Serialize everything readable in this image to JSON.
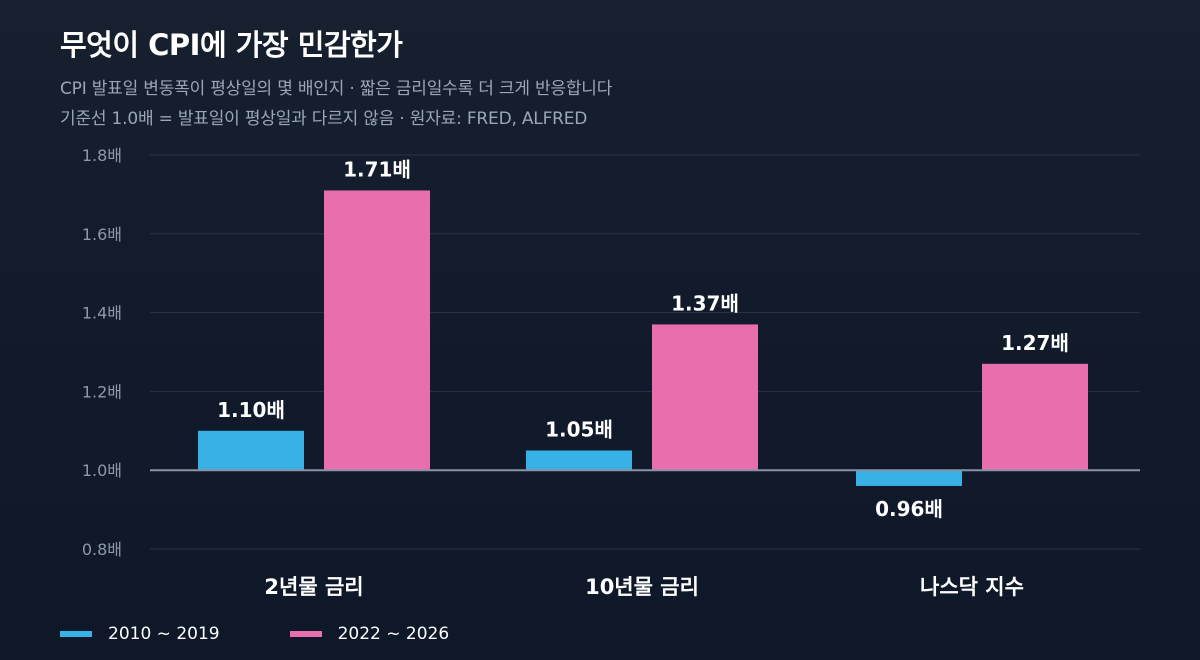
{
  "header": {
    "title": "무엇이 CPI에 가장 민감한가",
    "subtitle_line1": "CPI 발표일 변동폭이 평상일의 몇 배인지  ·  짧은 금리일수록 더 크게 반응합니다",
    "subtitle_line2": "기준선 1.0배 = 발표일이 평상일과 다르지 않음  ·  원자료: FRED, ALFRED"
  },
  "legend": {
    "items": [
      {
        "label": "2010 ~ 2019",
        "color": "#38b1e6"
      },
      {
        "label": "2022 ~ 2026",
        "color": "#e86eae"
      }
    ]
  },
  "chart_data": {
    "type": "bar",
    "categories": [
      "2년물 금리",
      "10년물 금리",
      "나스닥 지수"
    ],
    "series": [
      {
        "name": "2010 ~ 2019",
        "values": [
          1.1,
          1.05,
          0.96
        ],
        "labels": [
          "1.10배",
          "1.05배",
          "0.96배"
        ],
        "color": "#38b1e6"
      },
      {
        "name": "2022 ~ 2026",
        "values": [
          1.71,
          1.37,
          1.27
        ],
        "labels": [
          "1.71배",
          "1.37배",
          "1.27배"
        ],
        "color": "#e86eae"
      }
    ],
    "baseline": 1.0,
    "ylim": [
      0.8,
      1.8
    ],
    "yticks": [
      0.8,
      1.0,
      1.2,
      1.4,
      1.6,
      1.8
    ],
    "ytick_labels": [
      "0.8배",
      "1.0배",
      "1.2배",
      "1.4배",
      "1.6배",
      "1.8배"
    ],
    "grid": true,
    "legend_position": "bottom-left",
    "colors": {
      "grid": "#2a3446",
      "baseline": "#8a93a6",
      "tick_label": "#8d98aa",
      "category_label": "#ffffff",
      "value_label": "#ffffff"
    }
  }
}
